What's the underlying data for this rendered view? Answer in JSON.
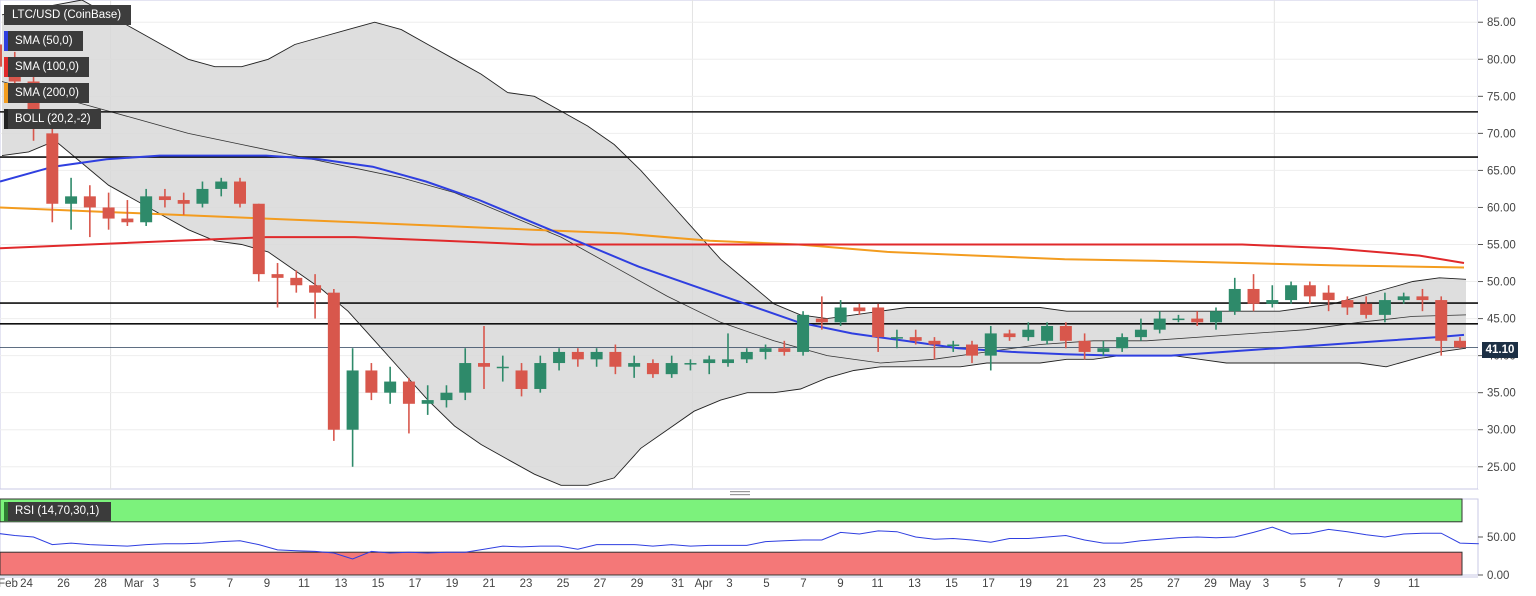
{
  "instrument_label": "LTC/USD (CoinBase)",
  "indicators": [
    {
      "label": "SMA (50,0)",
      "color": "#2f3fe0"
    },
    {
      "label": "SMA (100,0)",
      "color": "#e0292b"
    },
    {
      "label": "SMA (200,0)",
      "color": "#f39c1f"
    },
    {
      "label": "BOLL (20,2,-2)",
      "color": "#222222"
    }
  ],
  "rsi_label": "RSI (14,70,30,1)",
  "last_price": "41.10",
  "colors": {
    "up": "#2e8a6a",
    "down": "#d8574c",
    "band_fill": "#d8d8d8",
    "rsi_line": "#2f3fe0",
    "rsi_overbought": "#7cf27c",
    "rsi_oversold": "#f47878"
  },
  "chart_data": {
    "type": "candlestick",
    "y_axis": {
      "ylim": [
        22,
        88
      ],
      "ticks": [
        "85.00",
        "80.00",
        "75.00",
        "70.00",
        "65.00",
        "60.00",
        "55.00",
        "50.00",
        "45.00",
        "40.00",
        "35.00",
        "30.00",
        "25.00"
      ]
    },
    "x_ticks": [
      "Feb",
      "24",
      "26",
      "28",
      "Mar",
      "3",
      "5",
      "7",
      "9",
      "11",
      "13",
      "15",
      "17",
      "19",
      "21",
      "23",
      "25",
      "27",
      "29",
      "31",
      "Apr",
      "3",
      "5",
      "7",
      "9",
      "11",
      "13",
      "15",
      "17",
      "19",
      "21",
      "23",
      "25",
      "27",
      "29",
      "May",
      "3",
      "5",
      "7",
      "9",
      "11"
    ],
    "horizontal_levels": [
      72.9,
      66.8,
      47.1,
      44.3
    ],
    "candles": [
      {
        "d": "Feb 23",
        "o": 82,
        "h": 84,
        "l": 77,
        "c": 79
      },
      {
        "d": "Feb 24",
        "o": 79,
        "h": 81,
        "l": 75,
        "c": 77
      },
      {
        "d": "Feb 25",
        "o": 77,
        "h": 79,
        "l": 69,
        "c": 72
      },
      {
        "d": "Feb 26",
        "o": 70,
        "h": 71,
        "l": 58,
        "c": 60.5
      },
      {
        "d": "Feb 27",
        "o": 60.5,
        "h": 64,
        "l": 57,
        "c": 61.5
      },
      {
        "d": "Feb 28",
        "o": 61.5,
        "h": 63,
        "l": 56,
        "c": 60
      },
      {
        "d": "Mar 1",
        "o": 60,
        "h": 62,
        "l": 57,
        "c": 58.5
      },
      {
        "d": "Mar 2",
        "o": 58.5,
        "h": 61,
        "l": 57.5,
        "c": 58
      },
      {
        "d": "Mar 3",
        "o": 58,
        "h": 62.5,
        "l": 57.5,
        "c": 61.5
      },
      {
        "d": "Mar 4",
        "o": 61.5,
        "h": 62.5,
        "l": 60,
        "c": 61
      },
      {
        "d": "Mar 5",
        "o": 61,
        "h": 62,
        "l": 59,
        "c": 60.5
      },
      {
        "d": "Mar 6",
        "o": 60.5,
        "h": 63.5,
        "l": 60,
        "c": 62.5
      },
      {
        "d": "Mar 7",
        "o": 62.5,
        "h": 64,
        "l": 61.5,
        "c": 63.5
      },
      {
        "d": "Mar 8",
        "o": 63.5,
        "h": 64,
        "l": 60,
        "c": 60.5
      },
      {
        "d": "Mar 9",
        "o": 60.5,
        "h": 60.5,
        "l": 50,
        "c": 51
      },
      {
        "d": "Mar 10",
        "o": 51,
        "h": 52.5,
        "l": 46.5,
        "c": 50.5
      },
      {
        "d": "Mar 11",
        "o": 50.5,
        "h": 51.5,
        "l": 48.5,
        "c": 49.5
      },
      {
        "d": "Mar 12",
        "o": 49.5,
        "h": 51,
        "l": 45,
        "c": 48.5
      },
      {
        "d": "Mar 13",
        "o": 48.5,
        "h": 49,
        "l": 28.5,
        "c": 30
      },
      {
        "d": "Mar 14",
        "o": 30,
        "h": 41,
        "l": 25,
        "c": 38
      },
      {
        "d": "Mar 15",
        "o": 38,
        "h": 39,
        "l": 34,
        "c": 35
      },
      {
        "d": "Mar 16",
        "o": 35,
        "h": 38.5,
        "l": 33.5,
        "c": 36.5
      },
      {
        "d": "Mar 17",
        "o": 36.5,
        "h": 37,
        "l": 29.5,
        "c": 33.5
      },
      {
        "d": "Mar 18",
        "o": 33.5,
        "h": 36,
        "l": 32,
        "c": 34
      },
      {
        "d": "Mar 19",
        "o": 34,
        "h": 36,
        "l": 33,
        "c": 35
      },
      {
        "d": "Mar 20",
        "o": 35,
        "h": 41,
        "l": 34,
        "c": 39
      },
      {
        "d": "Mar 21",
        "o": 39,
        "h": 44,
        "l": 35.5,
        "c": 38.5
      },
      {
        "d": "Mar 22",
        "o": 38.5,
        "h": 40,
        "l": 36.5,
        "c": 38.5
      },
      {
        "d": "Mar 23",
        "o": 38,
        "h": 39,
        "l": 34.5,
        "c": 35.5
      },
      {
        "d": "Mar 24",
        "o": 35.5,
        "h": 40,
        "l": 35,
        "c": 39
      },
      {
        "d": "Mar 25",
        "o": 39,
        "h": 41,
        "l": 38,
        "c": 40.5
      },
      {
        "d": "Mar 26",
        "o": 40.5,
        "h": 41,
        "l": 38.5,
        "c": 39.5
      },
      {
        "d": "Mar 27",
        "o": 39.5,
        "h": 41,
        "l": 38.5,
        "c": 40.5
      },
      {
        "d": "Mar 28",
        "o": 40.5,
        "h": 41.5,
        "l": 37.5,
        "c": 38.5
      },
      {
        "d": "Mar 29",
        "o": 38.5,
        "h": 40,
        "l": 37,
        "c": 39
      },
      {
        "d": "Mar 30",
        "o": 39,
        "h": 39.5,
        "l": 37,
        "c": 37.5
      },
      {
        "d": "Mar 31",
        "o": 37.5,
        "h": 40,
        "l": 37,
        "c": 39
      },
      {
        "d": "Apr 1",
        "o": 39,
        "h": 39.5,
        "l": 38,
        "c": 39
      },
      {
        "d": "Apr 2",
        "o": 39,
        "h": 40,
        "l": 37.5,
        "c": 39.5
      },
      {
        "d": "Apr 3",
        "o": 39,
        "h": 43,
        "l": 38.5,
        "c": 39.5
      },
      {
        "d": "Apr 4",
        "o": 39.5,
        "h": 41,
        "l": 39,
        "c": 40.5
      },
      {
        "d": "Apr 5",
        "o": 40.5,
        "h": 41.5,
        "l": 39.5,
        "c": 41
      },
      {
        "d": "Apr 6",
        "o": 41,
        "h": 42,
        "l": 40,
        "c": 40.5
      },
      {
        "d": "Apr 7",
        "o": 40.5,
        "h": 46,
        "l": 40,
        "c": 45.5
      },
      {
        "d": "Apr 8",
        "o": 45,
        "h": 48,
        "l": 43.5,
        "c": 44.5
      },
      {
        "d": "Apr 9",
        "o": 44.5,
        "h": 47.5,
        "l": 44,
        "c": 46.5
      },
      {
        "d": "Apr 10",
        "o": 46.5,
        "h": 47,
        "l": 45.5,
        "c": 46
      },
      {
        "d": "Apr 11",
        "o": 46.5,
        "h": 47,
        "l": 40.5,
        "c": 42.5
      },
      {
        "d": "Apr 12",
        "o": 42.5,
        "h": 43.5,
        "l": 41,
        "c": 42.5
      },
      {
        "d": "Apr 13",
        "o": 42.5,
        "h": 43.5,
        "l": 41.5,
        "c": 42
      },
      {
        "d": "Apr 14",
        "o": 42,
        "h": 42.5,
        "l": 39.5,
        "c": 41.5
      },
      {
        "d": "Apr 15",
        "o": 41.5,
        "h": 42,
        "l": 40.5,
        "c": 41.5
      },
      {
        "d": "Apr 16",
        "o": 41.5,
        "h": 42,
        "l": 39,
        "c": 40
      },
      {
        "d": "Apr 17",
        "o": 40,
        "h": 44,
        "l": 38,
        "c": 43
      },
      {
        "d": "Apr 18",
        "o": 43,
        "h": 43.5,
        "l": 42,
        "c": 42.5
      },
      {
        "d": "Apr 19",
        "o": 42.5,
        "h": 44.5,
        "l": 42,
        "c": 43.5
      },
      {
        "d": "Apr 20",
        "o": 42,
        "h": 44.5,
        "l": 41.5,
        "c": 44
      },
      {
        "d": "Apr 21",
        "o": 44,
        "h": 44.5,
        "l": 41,
        "c": 42
      },
      {
        "d": "Apr 22",
        "o": 42,
        "h": 43,
        "l": 39.5,
        "c": 40.5
      },
      {
        "d": "Apr 23",
        "o": 40.5,
        "h": 42,
        "l": 40,
        "c": 41
      },
      {
        "d": "Apr 24",
        "o": 41,
        "h": 43,
        "l": 40.5,
        "c": 42.5
      },
      {
        "d": "Apr 25",
        "o": 42.5,
        "h": 45,
        "l": 42,
        "c": 43.5
      },
      {
        "d": "Apr 26",
        "o": 43.5,
        "h": 46,
        "l": 43,
        "c": 45
      },
      {
        "d": "Apr 27",
        "o": 45,
        "h": 45.5,
        "l": 44.5,
        "c": 45
      },
      {
        "d": "Apr 28",
        "o": 45,
        "h": 46,
        "l": 44,
        "c": 44.5
      },
      {
        "d": "Apr 29",
        "o": 44.5,
        "h": 46.5,
        "l": 43.5,
        "c": 46
      },
      {
        "d": "Apr 30",
        "o": 46,
        "h": 50.5,
        "l": 45.5,
        "c": 49
      },
      {
        "d": "May 1",
        "o": 49,
        "h": 51,
        "l": 46,
        "c": 47
      },
      {
        "d": "May 2",
        "o": 47,
        "h": 49.5,
        "l": 46.5,
        "c": 47.5
      },
      {
        "d": "May 3",
        "o": 47.5,
        "h": 50,
        "l": 47,
        "c": 49.5
      },
      {
        "d": "May 4",
        "o": 49.5,
        "h": 50,
        "l": 47,
        "c": 48
      },
      {
        "d": "May 5",
        "o": 48.5,
        "h": 49.5,
        "l": 46,
        "c": 47.5
      },
      {
        "d": "May 6",
        "o": 47.5,
        "h": 48,
        "l": 45.5,
        "c": 46.5
      },
      {
        "d": "May 7",
        "o": 47,
        "h": 48,
        "l": 45,
        "c": 45.5
      },
      {
        "d": "May 8",
        "o": 45.5,
        "h": 48.5,
        "l": 44.5,
        "c": 47.5
      },
      {
        "d": "May 9",
        "o": 47.5,
        "h": 48.5,
        "l": 47,
        "c": 48
      },
      {
        "d": "May 10",
        "o": 48,
        "h": 49,
        "l": 46,
        "c": 47.5
      },
      {
        "d": "May 11",
        "o": 47.5,
        "h": 48,
        "l": 40,
        "c": 42
      },
      {
        "d": "May 12",
        "o": 42,
        "h": 42.5,
        "l": 41,
        "c": 41.1
      }
    ],
    "bollinger_upper": [
      [
        0,
        86
      ],
      [
        3,
        87
      ],
      [
        6,
        88
      ],
      [
        8,
        86
      ],
      [
        10,
        84
      ],
      [
        12,
        82
      ],
      [
        14,
        80
      ],
      [
        16,
        79
      ],
      [
        18,
        79
      ],
      [
        20,
        80
      ],
      [
        22,
        82
      ],
      [
        24,
        83
      ],
      [
        26,
        84
      ],
      [
        28,
        85
      ],
      [
        30,
        84
      ],
      [
        32,
        82
      ],
      [
        34,
        80
      ],
      [
        36,
        78
      ],
      [
        38,
        75.5
      ],
      [
        40,
        75
      ],
      [
        42,
        73
      ],
      [
        44,
        71
      ],
      [
        46,
        68.5
      ],
      [
        48,
        65
      ],
      [
        50,
        61
      ],
      [
        52,
        57
      ],
      [
        54,
        53
      ],
      [
        56,
        50
      ],
      [
        58,
        47
      ],
      [
        60,
        45.5
      ],
      [
        62,
        45
      ],
      [
        64,
        45.5
      ],
      [
        66,
        46
      ],
      [
        68,
        46.5
      ],
      [
        70,
        46.5
      ],
      [
        72,
        46.5
      ],
      [
        74,
        46.5
      ],
      [
        76,
        46.5
      ],
      [
        78,
        46.5
      ],
      [
        80,
        46
      ],
      [
        82,
        46
      ],
      [
        84,
        46
      ],
      [
        86,
        46
      ],
      [
        88,
        46
      ],
      [
        90,
        46
      ],
      [
        92,
        46
      ],
      [
        94,
        46
      ],
      [
        96,
        46
      ],
      [
        98,
        46.5
      ],
      [
        100,
        47
      ],
      [
        102,
        48
      ],
      [
        104,
        49
      ],
      [
        106,
        50
      ],
      [
        108,
        50.5
      ],
      [
        110,
        50.3
      ]
    ],
    "bollinger_middle": [
      [
        0,
        77
      ],
      [
        6,
        74
      ],
      [
        10,
        72
      ],
      [
        14,
        70
      ],
      [
        18,
        68.5
      ],
      [
        22,
        67
      ],
      [
        26,
        65.5
      ],
      [
        30,
        64
      ],
      [
        34,
        62
      ],
      [
        38,
        59
      ],
      [
        42,
        56
      ],
      [
        46,
        52
      ],
      [
        50,
        48
      ],
      [
        54,
        44.5
      ],
      [
        58,
        42
      ],
      [
        62,
        40
      ],
      [
        66,
        39
      ],
      [
        70,
        39.5
      ],
      [
        74,
        40.5
      ],
      [
        78,
        41.5
      ],
      [
        82,
        42
      ],
      [
        86,
        42
      ],
      [
        90,
        42.5
      ],
      [
        94,
        43
      ],
      [
        98,
        43.5
      ],
      [
        102,
        44.5
      ],
      [
        106,
        45.3
      ],
      [
        110,
        45.5
      ]
    ],
    "bollinger_lower": [
      [
        0,
        67
      ],
      [
        2,
        67.5
      ],
      [
        4,
        69
      ],
      [
        6,
        66
      ],
      [
        8,
        63
      ],
      [
        10,
        61
      ],
      [
        12,
        59
      ],
      [
        14,
        57
      ],
      [
        16,
        55.5
      ],
      [
        18,
        55
      ],
      [
        20,
        54
      ],
      [
        22,
        51.5
      ],
      [
        24,
        49
      ],
      [
        26,
        46
      ],
      [
        28,
        42
      ],
      [
        30,
        38
      ],
      [
        32,
        34
      ],
      [
        34,
        30.5
      ],
      [
        36,
        28
      ],
      [
        38,
        26
      ],
      [
        40,
        24
      ],
      [
        42,
        22.5
      ],
      [
        44,
        22.5
      ],
      [
        46,
        23.5
      ],
      [
        48,
        27.5
      ],
      [
        50,
        30
      ],
      [
        52,
        32.5
      ],
      [
        54,
        34
      ],
      [
        56,
        35
      ],
      [
        58,
        35
      ],
      [
        60,
        35.5
      ],
      [
        62,
        37
      ],
      [
        64,
        38
      ],
      [
        66,
        38.5
      ],
      [
        68,
        38.5
      ],
      [
        70,
        38.5
      ],
      [
        72,
        38.5
      ],
      [
        74,
        39
      ],
      [
        76,
        39
      ],
      [
        78,
        39
      ],
      [
        80,
        39.5
      ],
      [
        82,
        39.5
      ],
      [
        84,
        40
      ],
      [
        86,
        40
      ],
      [
        88,
        40
      ],
      [
        90,
        39.5
      ],
      [
        92,
        39
      ],
      [
        94,
        39
      ],
      [
        96,
        39
      ],
      [
        98,
        39
      ],
      [
        100,
        39
      ],
      [
        102,
        39
      ],
      [
        104,
        38.5
      ],
      [
        106,
        39.5
      ],
      [
        108,
        40.5
      ],
      [
        110,
        41
      ]
    ],
    "sma_50": [
      [
        0,
        63.5
      ],
      [
        6,
        65.5
      ],
      [
        12,
        66.5
      ],
      [
        18,
        67
      ],
      [
        24,
        67
      ],
      [
        30,
        67
      ],
      [
        36,
        66.5
      ],
      [
        42,
        65.5
      ],
      [
        48,
        63.5
      ],
      [
        54,
        61
      ],
      [
        60,
        58
      ],
      [
        66,
        55
      ],
      [
        72,
        52
      ],
      [
        78,
        49.5
      ],
      [
        84,
        47
      ],
      [
        90,
        44.5
      ],
      [
        96,
        43
      ],
      [
        102,
        42
      ],
      [
        108,
        41
      ],
      [
        114,
        40.5
      ],
      [
        120,
        40.2
      ],
      [
        126,
        40
      ],
      [
        132,
        40
      ],
      [
        138,
        40.5
      ],
      [
        144,
        41
      ],
      [
        150,
        41.5
      ],
      [
        156,
        42
      ],
      [
        162,
        42.5
      ],
      [
        165,
        42.8
      ]
    ],
    "sma_100": [
      [
        0,
        54.5
      ],
      [
        10,
        55
      ],
      [
        20,
        55.5
      ],
      [
        30,
        56
      ],
      [
        40,
        56
      ],
      [
        50,
        55.5
      ],
      [
        60,
        55
      ],
      [
        70,
        55
      ],
      [
        80,
        55
      ],
      [
        90,
        55
      ],
      [
        100,
        55
      ],
      [
        110,
        55
      ],
      [
        120,
        55
      ],
      [
        130,
        55
      ],
      [
        140,
        55
      ],
      [
        150,
        54.5
      ],
      [
        160,
        53.5
      ],
      [
        165,
        52.5
      ]
    ],
    "sma_200": [
      [
        0,
        60
      ],
      [
        10,
        59.5
      ],
      [
        20,
        59
      ],
      [
        30,
        58.5
      ],
      [
        40,
        58
      ],
      [
        50,
        57.5
      ],
      [
        60,
        57
      ],
      [
        70,
        56.5
      ],
      [
        80,
        55.5
      ],
      [
        90,
        55
      ],
      [
        100,
        54
      ],
      [
        110,
        53.5
      ],
      [
        120,
        53
      ],
      [
        130,
        52.8
      ],
      [
        140,
        52.5
      ],
      [
        150,
        52.2
      ],
      [
        160,
        52
      ],
      [
        165,
        51.9
      ]
    ],
    "rsi": {
      "ylim": [
        0,
        100
      ],
      "levels": [
        70,
        30
      ],
      "tick_labels": [
        "50.00",
        "0.00"
      ],
      "values": [
        55,
        52,
        50,
        40,
        42,
        40,
        39,
        38,
        40,
        41,
        41,
        42,
        44,
        45,
        40,
        33,
        32,
        31,
        29,
        21,
        31,
        29,
        30,
        29,
        30,
        30,
        34,
        38,
        37,
        38,
        38,
        34,
        40,
        40,
        40,
        38,
        40,
        38,
        39,
        39,
        39,
        44,
        45,
        46,
        46,
        56,
        54,
        58,
        57,
        50,
        47,
        48,
        46,
        43,
        48,
        48,
        50,
        52,
        46,
        42,
        42,
        45,
        47,
        49,
        50,
        49,
        50,
        56,
        63,
        54,
        55,
        60,
        57,
        53,
        50,
        54,
        55,
        55,
        42,
        41
      ]
    }
  }
}
